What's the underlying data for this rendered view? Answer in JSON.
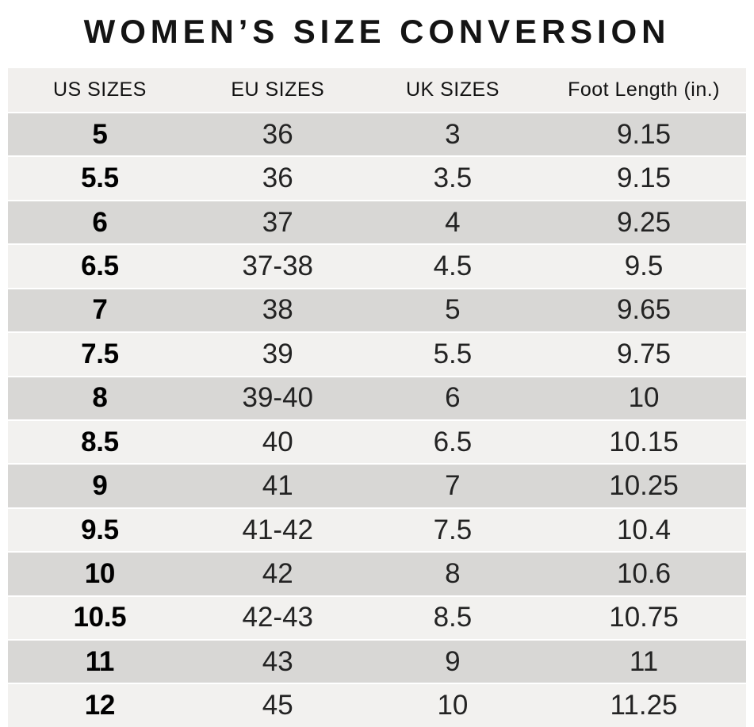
{
  "title": "WOMEN’S SIZE CONVERSION",
  "colors": {
    "row_dark": "#d8d7d5",
    "row_light": "#f2f1ef",
    "header_bg": "#f1efed",
    "text": "#232323",
    "title_color": "#141414"
  },
  "chart_data": {
    "type": "table",
    "title": "WOMEN’S SIZE CONVERSION",
    "columns": [
      "US SIZES",
      "EU SIZES",
      "UK SIZES",
      "Foot Length (in.)"
    ],
    "rows": [
      [
        "5",
        "36",
        "3",
        "9.15"
      ],
      [
        "5.5",
        "36",
        "3.5",
        "9.15"
      ],
      [
        "6",
        "37",
        "4",
        "9.25"
      ],
      [
        "6.5",
        "37-38",
        "4.5",
        "9.5"
      ],
      [
        "7",
        "38",
        "5",
        "9.65"
      ],
      [
        "7.5",
        "39",
        "5.5",
        "9.75"
      ],
      [
        "8",
        "39-40",
        "6",
        "10"
      ],
      [
        "8.5",
        "40",
        "6.5",
        "10.15"
      ],
      [
        "9",
        "41",
        "7",
        "10.25"
      ],
      [
        "9.5",
        "41-42",
        "7.5",
        "10.4"
      ],
      [
        "10",
        "42",
        "8",
        "10.6"
      ],
      [
        "10.5",
        "42-43",
        "8.5",
        "10.75"
      ],
      [
        "11",
        "43",
        "9",
        "11"
      ],
      [
        "12",
        "45",
        "10",
        "11.25"
      ]
    ]
  }
}
